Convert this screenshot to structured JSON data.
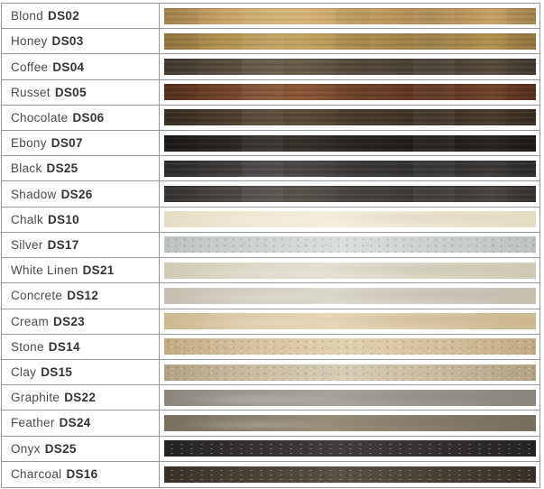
{
  "table": {
    "border_color": "#96999b",
    "text_color": "#4a4a4a",
    "code_color": "#333333",
    "columns": [
      "finish-name",
      "finish-sample"
    ],
    "rows": [
      {
        "name": "Blond",
        "code": "DS02",
        "texture": "wood",
        "base": "#c6a265",
        "light": "#d6b478",
        "dark": "#ab8750"
      },
      {
        "name": "Honey",
        "code": "DS03",
        "texture": "wood",
        "base": "#b29150",
        "light": "#c3a361",
        "dark": "#977940"
      },
      {
        "name": "Coffee",
        "code": "DS04",
        "texture": "wood",
        "base": "#564a3c",
        "light": "#675a49",
        "dark": "#433a2f"
      },
      {
        "name": "Russet",
        "code": "DS05",
        "texture": "wood",
        "base": "#71432a",
        "light": "#8a5634",
        "dark": "#582f1d"
      },
      {
        "name": "Chocolate",
        "code": "DS06",
        "texture": "wood",
        "base": "#4a3b2c",
        "light": "#5a4938",
        "dark": "#392d21"
      },
      {
        "name": "Ebony",
        "code": "DS07",
        "texture": "wood",
        "base": "#282420",
        "light": "#36302b",
        "dark": "#1c1917"
      },
      {
        "name": "Black",
        "code": "DS25",
        "texture": "wood",
        "base": "#3c3937",
        "light": "#4a4745",
        "dark": "#2e2c2a"
      },
      {
        "name": "Shadow",
        "code": "DS26",
        "texture": "wood",
        "base": "#494440",
        "light": "#58524c",
        "dark": "#383431"
      },
      {
        "name": "Chalk",
        "code": "DS10",
        "texture": "smooth",
        "base": "#eee6d1",
        "light": "#f5eedd",
        "dark": "#e5dcc4"
      },
      {
        "name": "Silver",
        "code": "DS17",
        "texture": "stone",
        "base": "#cbd1cf",
        "light": "#dadfdd",
        "dark": "#bcc3c2"
      },
      {
        "name": "White Linen",
        "code": "DS21",
        "texture": "smooth",
        "base": "#dad6c4",
        "light": "#e4e0d1",
        "dark": "#cecab6"
      },
      {
        "name": "Concrete",
        "code": "DS12",
        "texture": "smooth",
        "base": "#d1ccbe",
        "light": "#dcd7cb",
        "dark": "#c4bfaf"
      },
      {
        "name": "Cream",
        "code": "DS23",
        "texture": "smooth",
        "base": "#dbc8a6",
        "light": "#e6d6b8",
        "dark": "#cdb890"
      },
      {
        "name": "Stone",
        "code": "DS14",
        "texture": "stone",
        "base": "#d5c19e",
        "light": "#e2d1b0",
        "dark": "#c2ab83"
      },
      {
        "name": "Clay",
        "code": "DS15",
        "texture": "stone",
        "base": "#c9bba1",
        "light": "#d8ccb5",
        "dark": "#b3a283"
      },
      {
        "name": "Graphite",
        "code": "DS22",
        "texture": "smooth",
        "base": "#9b978c",
        "light": "#a8a499",
        "dark": "#8b877c"
      },
      {
        "name": "Feather",
        "code": "DS24",
        "texture": "smooth",
        "base": "#8a7f6c",
        "light": "#988d79",
        "dark": "#796f5d"
      },
      {
        "name": "Onyx",
        "code": "DS25",
        "texture": "stone",
        "base": "#343031",
        "light": "#413d3c",
        "dark": "#252223"
      },
      {
        "name": "Charcoal",
        "code": "DS16",
        "texture": "stone",
        "base": "#4a4135",
        "light": "#5a5043",
        "dark": "#393127"
      }
    ]
  }
}
